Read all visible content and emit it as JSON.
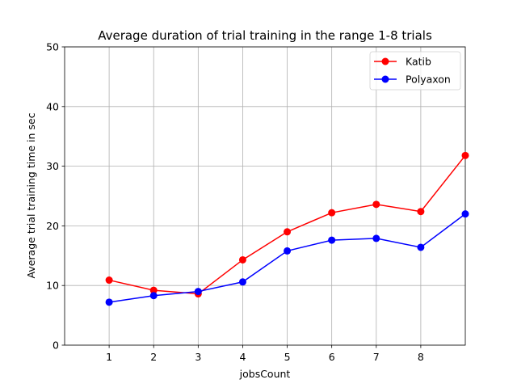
{
  "chart_data": {
    "type": "line",
    "title": "Average duration of trial training in the range 1-8 trials",
    "xlabel": "jobsCount",
    "ylabel": "Average trial training time in sec",
    "xlim": [
      0,
      9
    ],
    "ylim": [
      0,
      50
    ],
    "xticks": [
      "1",
      "2",
      "3",
      "4",
      "5",
      "6",
      "7",
      "8"
    ],
    "yticks": [
      "0",
      "10",
      "20",
      "30",
      "40",
      "50"
    ],
    "x": [
      1,
      2,
      3,
      4,
      5,
      6,
      7,
      8,
      9
    ],
    "grid": true,
    "legend_position": "top-right",
    "series": [
      {
        "name": "Katib",
        "color": "#ff0000",
        "values": [
          10.9,
          9.2,
          8.6,
          14.3,
          19.0,
          22.2,
          23.6,
          22.4,
          31.8
        ]
      },
      {
        "name": "Polyaxon",
        "color": "#0000ff",
        "values": [
          7.2,
          8.3,
          9.0,
          10.6,
          15.8,
          17.6,
          17.9,
          16.4,
          22.0
        ]
      }
    ]
  }
}
